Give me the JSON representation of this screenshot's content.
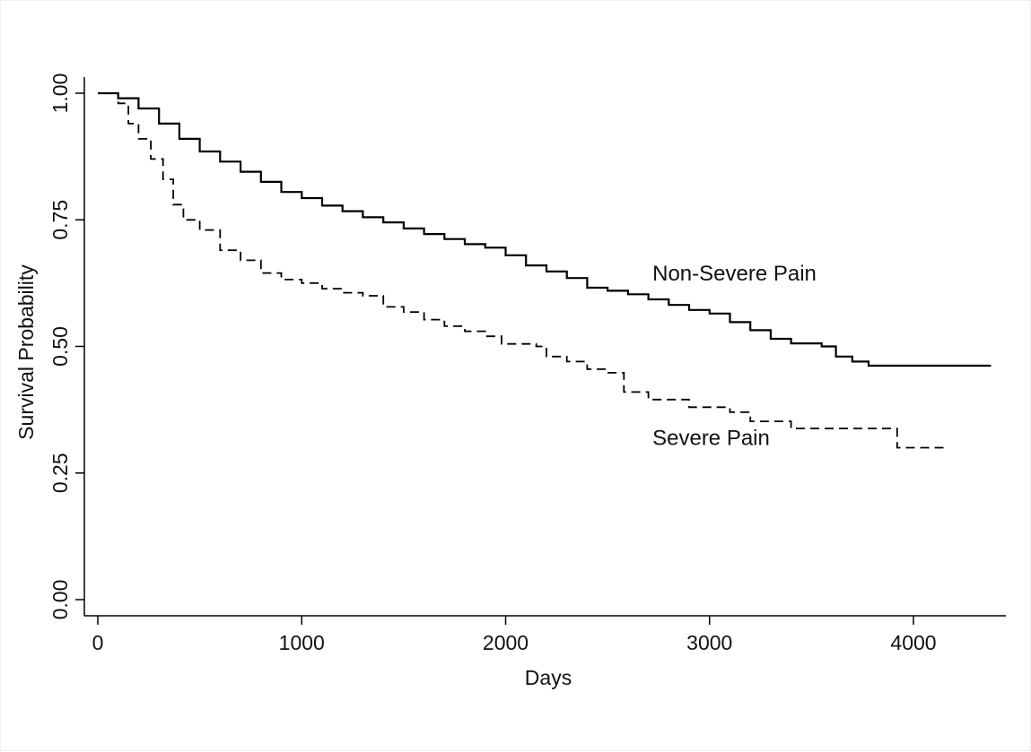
{
  "chart_data": {
    "type": "line",
    "title": "",
    "xlabel": "Days",
    "ylabel": "Survival Probability",
    "xlim": [
      0,
      4400
    ],
    "ylim": [
      0,
      1
    ],
    "grid": false,
    "x_ticks": [
      "0",
      "1000",
      "2000",
      "3000",
      "4000"
    ],
    "y_ticks": [
      "0.00",
      "0.25",
      "0.50",
      "0.75",
      "1.00"
    ],
    "series": [
      {
        "name": "Non-Severe Pain",
        "style": "solid",
        "color": "#000000",
        "points": [
          [
            0,
            1.0
          ],
          [
            60,
            1.0
          ],
          [
            100,
            0.99
          ],
          [
            200,
            0.97
          ],
          [
            300,
            0.94
          ],
          [
            400,
            0.91
          ],
          [
            500,
            0.885
          ],
          [
            600,
            0.865
          ],
          [
            700,
            0.845
          ],
          [
            800,
            0.825
          ],
          [
            900,
            0.805
          ],
          [
            1000,
            0.793
          ],
          [
            1100,
            0.778
          ],
          [
            1200,
            0.767
          ],
          [
            1300,
            0.755
          ],
          [
            1400,
            0.745
          ],
          [
            1500,
            0.733
          ],
          [
            1600,
            0.722
          ],
          [
            1700,
            0.712
          ],
          [
            1800,
            0.702
          ],
          [
            1900,
            0.695
          ],
          [
            2000,
            0.68
          ],
          [
            2100,
            0.66
          ],
          [
            2200,
            0.648
          ],
          [
            2300,
            0.635
          ],
          [
            2400,
            0.616
          ],
          [
            2500,
            0.61
          ],
          [
            2600,
            0.603
          ],
          [
            2700,
            0.593
          ],
          [
            2800,
            0.582
          ],
          [
            2900,
            0.572
          ],
          [
            3000,
            0.565
          ],
          [
            3100,
            0.548
          ],
          [
            3200,
            0.532
          ],
          [
            3300,
            0.515
          ],
          [
            3400,
            0.506
          ],
          [
            3550,
            0.5
          ],
          [
            3620,
            0.48
          ],
          [
            3700,
            0.47
          ],
          [
            3780,
            0.462
          ],
          [
            4380,
            0.462
          ]
        ]
      },
      {
        "name": "Severe Pain",
        "style": "dashed",
        "color": "#000000",
        "points": [
          [
            0,
            1.0
          ],
          [
            60,
            1.0
          ],
          [
            100,
            0.98
          ],
          [
            150,
            0.94
          ],
          [
            200,
            0.91
          ],
          [
            260,
            0.87
          ],
          [
            320,
            0.83
          ],
          [
            370,
            0.78
          ],
          [
            420,
            0.75
          ],
          [
            500,
            0.73
          ],
          [
            600,
            0.69
          ],
          [
            700,
            0.67
          ],
          [
            800,
            0.645
          ],
          [
            900,
            0.632
          ],
          [
            1000,
            0.625
          ],
          [
            1100,
            0.614
          ],
          [
            1200,
            0.606
          ],
          [
            1300,
            0.6
          ],
          [
            1400,
            0.578
          ],
          [
            1500,
            0.568
          ],
          [
            1600,
            0.553
          ],
          [
            1700,
            0.54
          ],
          [
            1800,
            0.53
          ],
          [
            1900,
            0.52
          ],
          [
            1980,
            0.505
          ],
          [
            2150,
            0.5
          ],
          [
            2200,
            0.48
          ],
          [
            2300,
            0.47
          ],
          [
            2400,
            0.455
          ],
          [
            2500,
            0.448
          ],
          [
            2580,
            0.41
          ],
          [
            2700,
            0.395
          ],
          [
            2900,
            0.38
          ],
          [
            3100,
            0.37
          ],
          [
            3200,
            0.352
          ],
          [
            3400,
            0.338
          ],
          [
            3900,
            0.338
          ],
          [
            3920,
            0.3
          ],
          [
            4150,
            0.3
          ]
        ]
      }
    ],
    "annotations": [
      {
        "text": "Non-Severe Pain",
        "x": 2720,
        "y": 0.63
      },
      {
        "text": "Severe Pain",
        "x": 2720,
        "y": 0.305
      }
    ]
  }
}
